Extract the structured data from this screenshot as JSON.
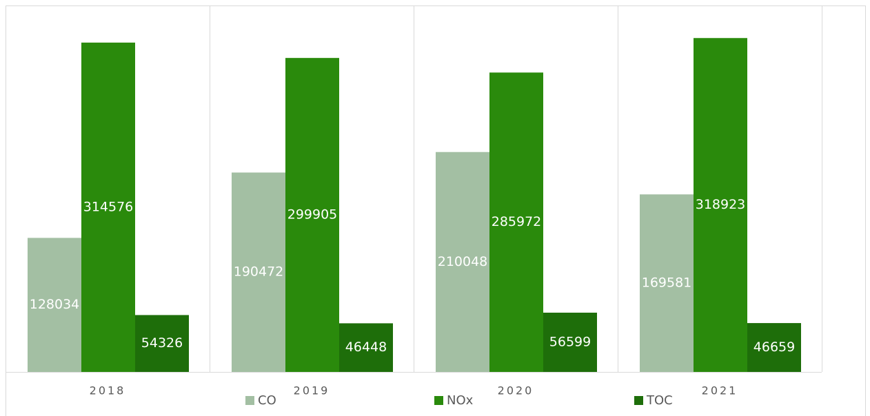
{
  "chart_data": {
    "type": "bar",
    "categories": [
      "2018",
      "2019",
      "2020",
      "2021"
    ],
    "series": [
      {
        "name": "CO",
        "color": "#a3bfa3",
        "values": [
          128034,
          190472,
          210048,
          169581
        ]
      },
      {
        "name": "NOx",
        "color": "#2a8a0c",
        "values": [
          314576,
          299905,
          285972,
          318923
        ]
      },
      {
        "name": "TOC",
        "color": "#1e6e0a",
        "values": [
          54326,
          46448,
          56599,
          46659
        ]
      }
    ],
    "ylim": [
      0,
      350000
    ],
    "legend": "bottom"
  }
}
